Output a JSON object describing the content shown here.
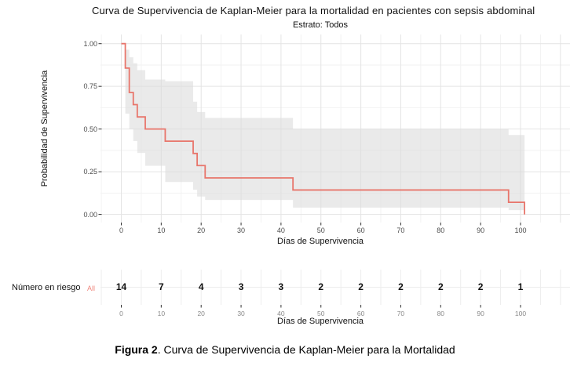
{
  "figure": {
    "caption_bold": "Figura 2",
    "caption_rest": ". Curva de Supervivencia de Kaplan-Meier para la Mortalidad"
  },
  "colors": {
    "curve": "#e8756b",
    "ci_band": "#dcdcdc",
    "grid_major": "#e4e4e4",
    "grid_minor": "#f2f2f2",
    "risk_grid": "#ededed",
    "tick_mark": "#333333",
    "tick_text": "#4d4d4d",
    "risk_tick_text": "#8a8a8a",
    "stratum_label": "#f08a81"
  },
  "chart_data": {
    "type": "line",
    "subtype": "kaplan-meier-step",
    "title": "Curva de Supervivencia de Kaplan-Meier para la mortalidad en pacientes con sepsis abdominal",
    "subtitle": "Estrato: Todos",
    "xlabel": "Días de Supervivencia",
    "ylabel": "Probabilidad de Supervivencia",
    "xlim": [
      -5,
      112
    ],
    "ylim": [
      0,
      1
    ],
    "grid": true,
    "legend": "none",
    "xticks": [
      0,
      10,
      20,
      30,
      40,
      50,
      60,
      70,
      80,
      90,
      100
    ],
    "ytick_values": [
      1.0,
      0.75,
      0.5,
      0.25,
      0.0
    ],
    "ytick_labels": [
      "1.00",
      "0.75",
      "0.50",
      "0.25",
      "0.00"
    ],
    "series": [
      {
        "name": "All",
        "color": "#e8756b",
        "ci_shown": true,
        "steps": [
          {
            "t": 0,
            "s": 1.0,
            "lo": 1.0,
            "hi": 1.0
          },
          {
            "t": 1,
            "s": 0.857,
            "lo": 0.59,
            "hi": 0.965
          },
          {
            "t": 2,
            "s": 0.714,
            "lo": 0.5,
            "hi": 0.92
          },
          {
            "t": 3,
            "s": 0.643,
            "lo": 0.43,
            "hi": 0.885
          },
          {
            "t": 4,
            "s": 0.571,
            "lo": 0.36,
            "hi": 0.845
          },
          {
            "t": 6,
            "s": 0.5,
            "lo": 0.285,
            "hi": 0.79
          },
          {
            "t": 11,
            "s": 0.429,
            "lo": 0.19,
            "hi": 0.78
          },
          {
            "t": 18,
            "s": 0.357,
            "lo": 0.145,
            "hi": 0.66
          },
          {
            "t": 19,
            "s": 0.286,
            "lo": 0.105,
            "hi": 0.6
          },
          {
            "t": 21,
            "s": 0.214,
            "lo": 0.085,
            "hi": 0.565
          },
          {
            "t": 43,
            "s": 0.143,
            "lo": 0.04,
            "hi": 0.5
          },
          {
            "t": 97,
            "s": 0.071,
            "lo": 0.025,
            "hi": 0.465
          },
          {
            "t": 101,
            "s": 0.0,
            "lo": null,
            "hi": null
          }
        ]
      }
    ],
    "risk_table": {
      "label": "Número en riesgo",
      "stratum": "All",
      "times": [
        0,
        10,
        20,
        30,
        40,
        50,
        60,
        70,
        80,
        90,
        100
      ],
      "at_risk": [
        14,
        7,
        4,
        3,
        3,
        2,
        2,
        2,
        2,
        2,
        1
      ]
    }
  }
}
